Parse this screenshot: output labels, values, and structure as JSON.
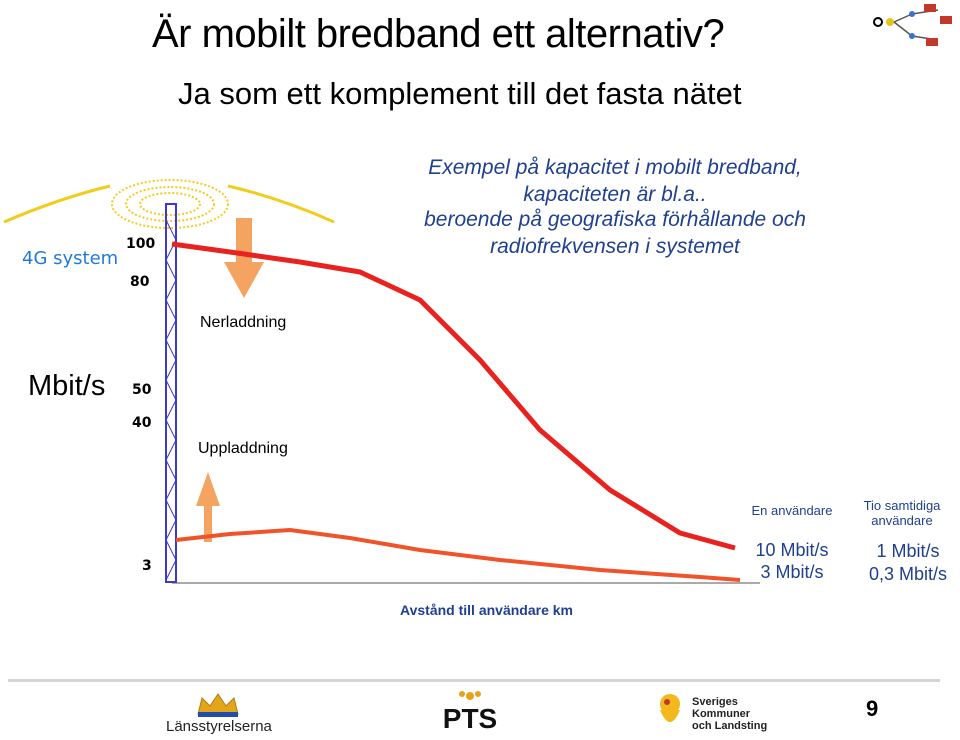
{
  "title": "Är mobilt bredband ett alternativ?",
  "subtitle": "Ja som ett komplement till det fasta nätet",
  "note_lines": [
    "Exempel på kapacitet i mobilt bredband,",
    "kapaciteten är bl.a..",
    "beroende på geografiska förhållande och",
    "radiofrekvensen i systemet"
  ],
  "system_label": "4G system",
  "unit_label": "Mbit/s",
  "download_label": "Nerladdning",
  "upload_label": "Uppladdning",
  "x_axis_label": "Avstånd till användare km",
  "page_number": "9",
  "logos": {
    "lansstyrelserna": "Länsstyrelserna",
    "pts": "PTS",
    "skl": [
      "Sveriges",
      "Kommuner",
      "och Landsting"
    ]
  },
  "colors": {
    "download_curve": "#e8231f",
    "upload_curve": "#f0522a",
    "arrow": "#f4a460",
    "mast": "#3a3ad0",
    "signal": "#f2cc1c",
    "accent_text": "#1f3f8f",
    "system_text": "#1f7ad8"
  },
  "chart_data": {
    "type": "line",
    "title": "",
    "xlabel": "Avstånd till användare km",
    "ylabel": "Mbit/s",
    "y_tick_labels": [
      "100",
      "80",
      "50",
      "40",
      "3"
    ],
    "series": [
      {
        "name": "Nerladdning",
        "peak_range": [
          80,
          100
        ],
        "endpoint_labels": [
          "10 Mbit/s",
          "1 Mbit/s"
        ]
      },
      {
        "name": "Uppladdning",
        "peak_range": [
          40,
          50
        ],
        "endpoint_labels": [
          "3 Mbit/s",
          "0,3 Mbit/s"
        ]
      }
    ],
    "columns": [
      {
        "header": "En användare",
        "values": [
          "10 Mbit/s",
          "3 Mbit/s"
        ]
      },
      {
        "header": "Tio samtidiga användare",
        "values": [
          "1 Mbit/s",
          "0,3 Mbit/s"
        ]
      }
    ],
    "grid": false,
    "legend": "none"
  }
}
